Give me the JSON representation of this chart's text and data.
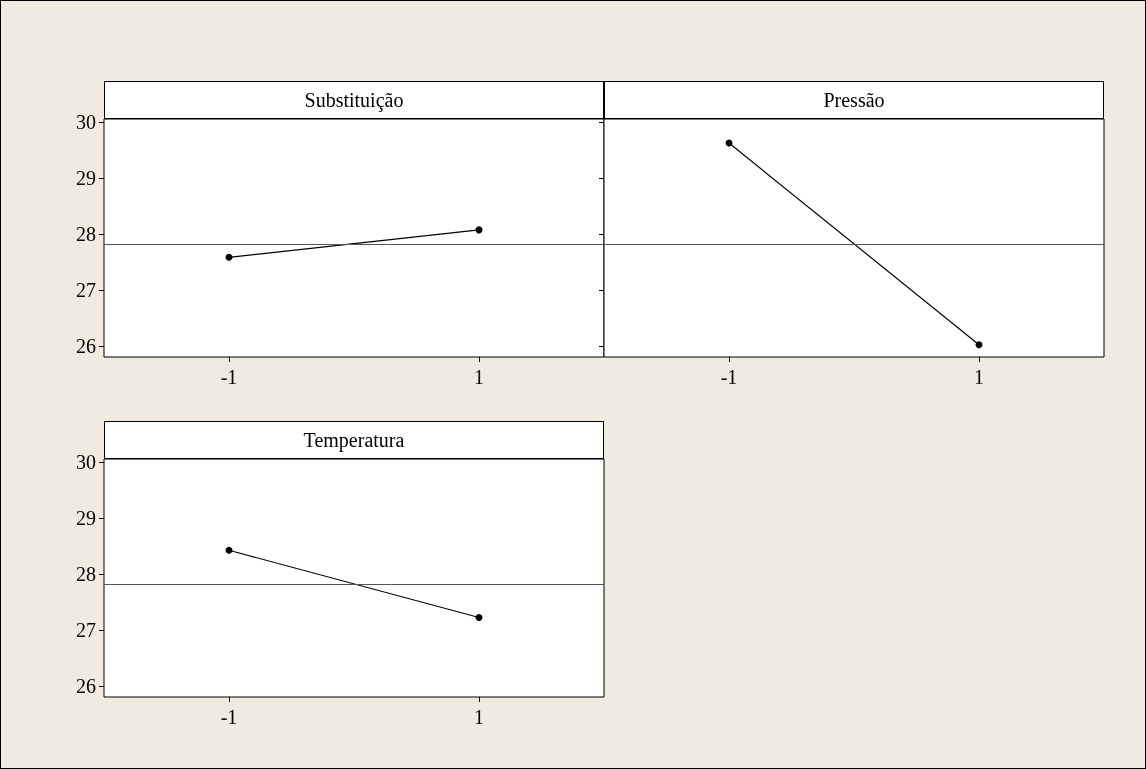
{
  "chart_data": [
    {
      "type": "line",
      "title": "Substituição",
      "categories": [
        "-1",
        "1"
      ],
      "values": [
        27.58,
        28.07
      ],
      "color": "#000000",
      "marker": "circle",
      "ylim": [
        25.8,
        30.05
      ],
      "yticks": [
        26,
        27,
        28,
        29,
        30
      ],
      "ref_lines": [
        {
          "axis": "y",
          "value": 27.82,
          "color": "#555555"
        }
      ],
      "grid": false
    },
    {
      "type": "line",
      "title": "Pressão",
      "categories": [
        "-1",
        "1"
      ],
      "values": [
        29.62,
        26.02
      ],
      "color": "#000000",
      "marker": "circle",
      "ylim": [
        25.8,
        30.05
      ],
      "yticks": [
        26,
        27,
        28,
        29,
        30
      ],
      "ref_lines": [
        {
          "axis": "y",
          "value": 27.82,
          "color": "#555555"
        }
      ],
      "grid": false,
      "tick_labels": "x"
    },
    {
      "type": "line",
      "title": "Temperatura",
      "categories": [
        "-1",
        "1"
      ],
      "values": [
        28.42,
        27.22
      ],
      "color": "#000000",
      "marker": "circle",
      "ylim": [
        25.8,
        30.05
      ],
      "yticks": [
        26,
        27,
        28,
        29,
        30
      ],
      "ref_lines": [
        {
          "axis": "y",
          "value": 27.82,
          "color": "#555555"
        }
      ],
      "grid": false
    }
  ]
}
